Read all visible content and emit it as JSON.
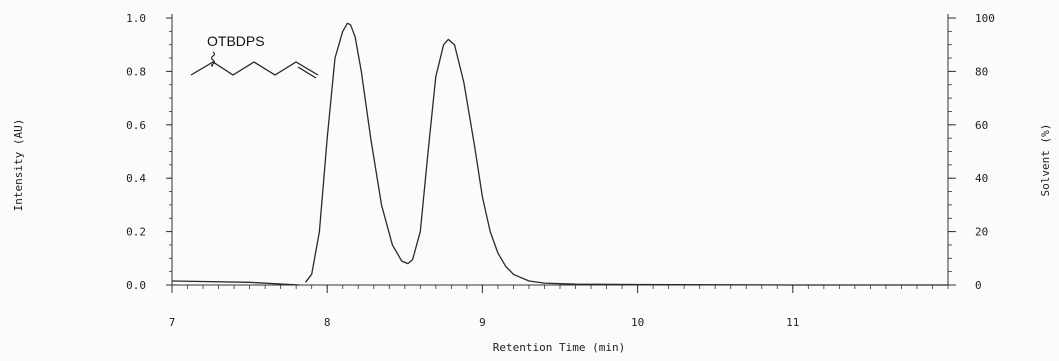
{
  "chart_data": {
    "type": "line",
    "title": "",
    "xlabel": "Retention Time (min)",
    "ylabel_left": "Intensity (AU)",
    "ylabel_right": "Solvent (%)",
    "xlim": [
      7,
      12
    ],
    "ylim_left": [
      0,
      1.0
    ],
    "ylim_right": [
      0,
      100
    ],
    "x_ticks": [
      "7",
      "8",
      "9",
      "10",
      "11"
    ],
    "y_ticks_left": [
      "0.0",
      "0.2",
      "0.4",
      "0.6",
      "0.8",
      "1.0"
    ],
    "y_ticks_right": [
      "0",
      "20",
      "40",
      "60",
      "80",
      "100"
    ],
    "grid": false,
    "series": [
      {
        "x": [
          7.0,
          7.5,
          7.82,
          7.86,
          7.9,
          7.95,
          8.0,
          8.05,
          8.1,
          8.13,
          8.15,
          8.18,
          8.22,
          8.28,
          8.35,
          8.42,
          8.48,
          8.52,
          8.55,
          8.6,
          8.65,
          8.7,
          8.75,
          8.78,
          8.82,
          8.88,
          8.95,
          9.0,
          9.05,
          9.1,
          9.15,
          9.2,
          9.3,
          9.4,
          9.6,
          10.0,
          11.0,
          12.0
        ],
        "y": [
          0.015,
          0.01,
          0.0,
          0.01,
          0.04,
          0.2,
          0.55,
          0.85,
          0.95,
          0.98,
          0.975,
          0.93,
          0.8,
          0.55,
          0.3,
          0.15,
          0.09,
          0.08,
          0.095,
          0.2,
          0.5,
          0.78,
          0.9,
          0.92,
          0.9,
          0.76,
          0.52,
          0.33,
          0.2,
          0.12,
          0.07,
          0.04,
          0.015,
          0.007,
          0.003,
          0.002,
          0.0,
          0.0
        ]
      }
    ],
    "annotations": [
      {
        "text": "OTBDPS"
      }
    ]
  }
}
